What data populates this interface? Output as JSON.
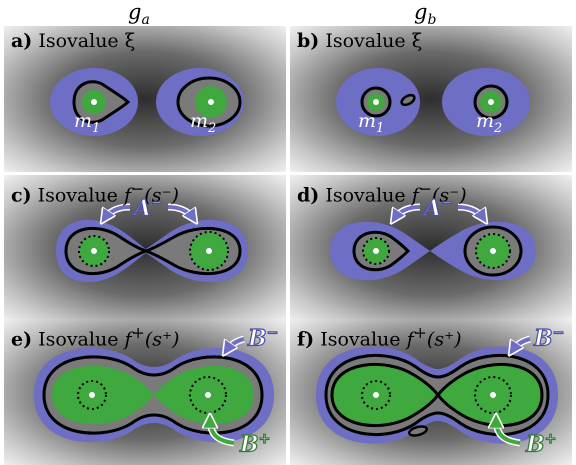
{
  "columns": {
    "left": {
      "base": "g",
      "sub": "a"
    },
    "right": {
      "base": "g",
      "sub": "b"
    }
  },
  "panels": [
    {
      "id": "a",
      "letter": "a)",
      "text": "Isovalue",
      "sym": "ξ",
      "sup": "",
      "arg": ""
    },
    {
      "id": "b",
      "letter": "b)",
      "text": "Isovalue",
      "sym": "ξ",
      "sup": "",
      "arg": ""
    },
    {
      "id": "c",
      "letter": "c)",
      "text": "Isovalue",
      "sym": "f",
      "sup": "−",
      "arg": "(s⁻)"
    },
    {
      "id": "d",
      "letter": "d)",
      "text": "Isovalue",
      "sym": "f",
      "sup": "−",
      "arg": "(s⁻)"
    },
    {
      "id": "e",
      "letter": "e)",
      "text": "Isovalue",
      "sym": "f",
      "sup": "+",
      "arg": "(s⁺)"
    },
    {
      "id": "f",
      "letter": "f)",
      "text": "Isovalue",
      "sym": "f",
      "sup": "+",
      "arg": "(s⁺)"
    }
  ],
  "labels": {
    "m1": {
      "base": "m",
      "sub": "1"
    },
    "m2": {
      "base": "m",
      "sub": "2"
    },
    "A": {
      "base": "A",
      "sup": "−"
    },
    "Bminus": {
      "base": "B",
      "sup": "−"
    },
    "Bplus": {
      "base": "B",
      "sup": "+"
    }
  },
  "colors": {
    "blue": "#6e6ec4",
    "green": "#3fa83f",
    "gray": "#7a7a7a",
    "outline": "#000000",
    "background_center": "#3a3a3a",
    "background_edge": "#ffffff"
  }
}
